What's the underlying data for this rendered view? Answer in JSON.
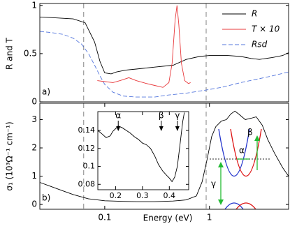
{
  "chart_data": [
    {
      "type": "line",
      "panel_label": "a)",
      "ylabel": "R and T",
      "xlog": true,
      "xlim": [
        0.024,
        5.7
      ],
      "ylim": [
        0,
        1.02
      ],
      "yticks": [
        0,
        0.5,
        1
      ],
      "vlines": [
        0.063,
        0.93
      ],
      "legend": "upper right",
      "series": [
        {
          "name": "R",
          "color": "#000000",
          "dash": false,
          "x": [
            0.024,
            0.035,
            0.05,
            0.065,
            0.08,
            0.09,
            0.1,
            0.115,
            0.13,
            0.16,
            0.2,
            0.3,
            0.45,
            0.6,
            0.8,
            1,
            1.5,
            2,
            2.5,
            3,
            4,
            5,
            5.7
          ],
          "values": [
            0.88,
            0.87,
            0.86,
            0.82,
            0.62,
            0.42,
            0.3,
            0.29,
            0.31,
            0.33,
            0.34,
            0.36,
            0.38,
            0.44,
            0.47,
            0.48,
            0.48,
            0.47,
            0.45,
            0.44,
            0.46,
            0.48,
            0.51
          ]
        },
        {
          "name": "T × 10",
          "color": "#e8383b",
          "dash": false,
          "x": [
            0.085,
            0.1,
            0.12,
            0.14,
            0.17,
            0.2,
            0.25,
            0.3,
            0.36,
            0.41,
            0.44,
            0.47,
            0.49,
            0.51,
            0.54,
            0.58,
            0.63,
            0.66
          ],
          "values": [
            0.22,
            0.21,
            0.2,
            0.22,
            0.25,
            0.22,
            0.19,
            0.17,
            0.15,
            0.2,
            0.4,
            0.85,
            1.0,
            0.8,
            0.4,
            0.22,
            0.19,
            0.2
          ]
        },
        {
          "name": "Rsd",
          "color": "#5577dd",
          "dash": true,
          "x": [
            0.024,
            0.03,
            0.04,
            0.05,
            0.06,
            0.07,
            0.08,
            0.09,
            0.1,
            0.12,
            0.15,
            0.2,
            0.3,
            0.4,
            0.6,
            0.9,
            1.3,
            2,
            3,
            4,
            5.7
          ],
          "values": [
            0.73,
            0.72,
            0.7,
            0.66,
            0.6,
            0.5,
            0.38,
            0.27,
            0.18,
            0.1,
            0.06,
            0.05,
            0.05,
            0.07,
            0.09,
            0.12,
            0.15,
            0.2,
            0.24,
            0.27,
            0.31
          ]
        }
      ]
    },
    {
      "type": "line",
      "panel_label": "b)",
      "ylabel": "σ₁ (10³Ω⁻¹ cm⁻¹)",
      "xlabel": "Energy (eV)",
      "xlog": true,
      "xlim": [
        0.024,
        5.7
      ],
      "ylim": [
        -0.17,
        3.58
      ],
      "xticks": [
        0.1,
        1
      ],
      "yticks": [
        0,
        1,
        2,
        3
      ],
      "vlines": [
        0.063,
        0.93
      ],
      "band_labels": [
        "γ",
        "α",
        "β"
      ],
      "series": [
        {
          "name": null,
          "color": "#000000",
          "dash": false,
          "x": [
            0.024,
            0.03,
            0.04,
            0.05,
            0.07,
            0.1,
            0.15,
            0.2,
            0.3,
            0.45,
            0.6,
            0.75,
            0.85,
            0.95,
            1.05,
            1.15,
            1.3,
            1.45,
            1.6,
            1.75,
            1.9,
            2.2,
            2.5,
            2.8,
            3.2,
            3.6,
            4.2,
            5,
            5.7
          ],
          "values": [
            0.78,
            0.65,
            0.48,
            0.35,
            0.2,
            0.13,
            0.11,
            0.1,
            0.1,
            0.12,
            0.16,
            0.3,
            0.8,
            1.6,
            2.4,
            2.75,
            2.95,
            3.0,
            3.2,
            3.3,
            3.2,
            3.0,
            3.05,
            3.1,
            2.8,
            2.3,
            1.8,
            1.3,
            1.0
          ]
        }
      ]
    },
    {
      "type": "line",
      "inset": true,
      "xlim": [
        0.134,
        0.472
      ],
      "ylim": [
        0.074,
        0.161
      ],
      "xticks": [
        0.2,
        0.3,
        0.4
      ],
      "yticks": [
        0.08,
        0.1,
        0.12,
        0.14
      ],
      "annotations": [
        {
          "text": "α",
          "x": 0.21
        },
        {
          "text": "β",
          "x": 0.37
        },
        {
          "text": "γ",
          "x": 0.43
        }
      ],
      "series": [
        {
          "name": null,
          "color": "#000000",
          "dash": false,
          "x": [
            0.134,
            0.15,
            0.165,
            0.18,
            0.19,
            0.2,
            0.21,
            0.225,
            0.24,
            0.255,
            0.27,
            0.285,
            0.3,
            0.315,
            0.33,
            0.345,
            0.36,
            0.375,
            0.39,
            0.4,
            0.41,
            0.42,
            0.43,
            0.44,
            0.45,
            0.456
          ],
          "values": [
            0.14,
            0.136,
            0.132,
            0.134,
            0.139,
            0.142,
            0.145,
            0.143,
            0.14,
            0.137,
            0.133,
            0.13,
            0.126,
            0.124,
            0.12,
            0.112,
            0.102,
            0.095,
            0.09,
            0.087,
            0.083,
            0.088,
            0.1,
            0.125,
            0.15,
            0.16
          ]
        }
      ]
    }
  ]
}
